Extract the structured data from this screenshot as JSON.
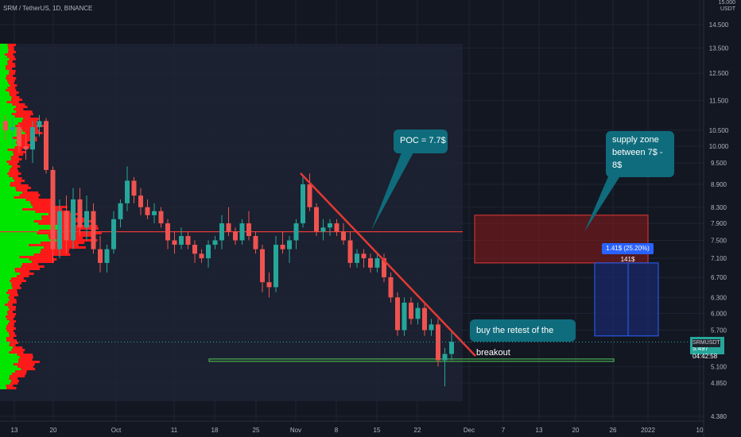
{
  "header": {
    "symbol": "SRM / TetherUS, 1D, BINANCE"
  },
  "price_axis": {
    "currency": "USDT",
    "prev_tick": "15.000"
  },
  "price_tag": {
    "symbol": "SRMUSDT",
    "price": "5.497",
    "countdown": "04:42:58"
  },
  "annotations": {
    "poc": "POC = 7.7$",
    "supply_line1": "supply zone",
    "supply_line2": "between 7$ - 8$",
    "buy": "buy the retest of the breakout"
  },
  "measure": {
    "label": "1.41$ (25.20%) 141$"
  },
  "colors": {
    "background": "#131722",
    "up": "#26a69a",
    "down": "#ef5350",
    "volume_profile_up": "#00e600",
    "volume_profile_down": "#ff1a1a",
    "poc_line": "#e53935",
    "support_line": "#4caf50",
    "supply_zone": "#8b1a1a",
    "measure_box": "#1a2a6c",
    "annotation": "#0f6c7c"
  },
  "chart_data": {
    "type": "candlestick",
    "title": "SRM / TetherUS, 1D, BINANCE",
    "ylim": [
      4.2,
      15.6
    ],
    "y_scale": "log",
    "y_ticks": [
      "14.500",
      "13.500",
      "12.500",
      "11.500",
      "10.500",
      "10.000",
      "9.500",
      "8.900",
      "8.300",
      "7.900",
      "7.500",
      "7.100",
      "6.700",
      "6.300",
      "6.000",
      "5.700",
      "5.100",
      "4.850",
      "4.380"
    ],
    "x_ticks": [
      "13",
      "20",
      "Oct",
      "11",
      "18",
      "25",
      "Nov",
      "8",
      "15",
      "22",
      "Dec",
      "7",
      "13",
      "20",
      "26",
      "2022",
      "10"
    ],
    "last_price": 5.497,
    "horizontal_lines": [
      {
        "label": "POC",
        "price": 7.7
      },
      {
        "label": "support",
        "price": 5.2
      }
    ],
    "zones": [
      {
        "label": "supply zone",
        "low": 7.0,
        "high": 8.0
      }
    ],
    "measure": {
      "from": 5.6,
      "to": 7.0,
      "text": "1.41$ (25.20%) 141$"
    },
    "trendline": {
      "from": {
        "date": "Nov 1",
        "price": 9.2
      },
      "to": {
        "date": "Nov 28",
        "price": 5.4
      }
    },
    "candles": [
      [
        10.8,
        11.0,
        10.2,
        10.5
      ],
      [
        10.5,
        10.9,
        10.0,
        10.6
      ],
      [
        10.6,
        10.7,
        9.8,
        10.0
      ],
      [
        10.0,
        10.4,
        9.6,
        9.9
      ],
      [
        9.9,
        10.8,
        9.5,
        10.6
      ],
      [
        10.6,
        11.0,
        10.3,
        10.8
      ],
      [
        10.8,
        10.9,
        9.2,
        9.3
      ],
      [
        9.3,
        9.4,
        7.0,
        7.3
      ],
      [
        7.3,
        8.5,
        7.1,
        8.2
      ],
      [
        8.2,
        8.6,
        7.2,
        7.5
      ],
      [
        7.5,
        8.8,
        7.3,
        8.5
      ],
      [
        8.5,
        8.8,
        7.6,
        7.8
      ],
      [
        7.8,
        8.6,
        7.5,
        8.2
      ],
      [
        8.2,
        8.4,
        7.2,
        7.3
      ],
      [
        7.3,
        7.6,
        6.8,
        7.0
      ],
      [
        7.0,
        7.4,
        6.8,
        7.3
      ],
      [
        7.3,
        8.2,
        7.2,
        8.0
      ],
      [
        8.0,
        8.5,
        7.8,
        8.4
      ],
      [
        8.4,
        9.4,
        8.2,
        9.0
      ],
      [
        9.0,
        9.1,
        8.4,
        8.6
      ],
      [
        8.6,
        8.8,
        8.1,
        8.3
      ],
      [
        8.3,
        8.5,
        8.0,
        8.1
      ],
      [
        8.1,
        8.4,
        7.9,
        8.2
      ],
      [
        8.2,
        8.3,
        7.8,
        7.9
      ],
      [
        7.9,
        8.0,
        7.3,
        7.5
      ],
      [
        7.5,
        7.7,
        7.2,
        7.4
      ],
      [
        7.4,
        7.8,
        7.3,
        7.6
      ],
      [
        7.6,
        7.7,
        7.3,
        7.4
      ],
      [
        7.4,
        7.5,
        7.0,
        7.2
      ],
      [
        7.2,
        7.3,
        7.0,
        7.1
      ],
      [
        7.1,
        7.5,
        6.9,
        7.4
      ],
      [
        7.4,
        7.6,
        7.3,
        7.5
      ],
      [
        7.5,
        8.1,
        7.3,
        7.9
      ],
      [
        7.9,
        8.3,
        7.6,
        7.7
      ],
      [
        7.7,
        7.8,
        7.4,
        7.5
      ],
      [
        7.5,
        8.0,
        7.4,
        7.9
      ],
      [
        7.9,
        8.2,
        7.5,
        7.6
      ],
      [
        7.6,
        7.7,
        7.2,
        7.3
      ],
      [
        7.3,
        7.4,
        6.4,
        6.6
      ],
      [
        6.6,
        6.8,
        6.3,
        6.5
      ],
      [
        6.5,
        7.6,
        6.4,
        7.4
      ],
      [
        7.4,
        7.7,
        7.2,
        7.3
      ],
      [
        7.3,
        7.6,
        7.0,
        7.5
      ],
      [
        7.5,
        8.0,
        7.3,
        7.9
      ],
      [
        7.9,
        9.1,
        7.8,
        8.9
      ],
      [
        8.9,
        9.2,
        8.2,
        8.3
      ],
      [
        8.3,
        8.4,
        7.6,
        7.7
      ],
      [
        7.7,
        8.0,
        7.5,
        7.8
      ],
      [
        7.8,
        8.0,
        7.6,
        7.9
      ],
      [
        7.9,
        8.0,
        7.6,
        7.7
      ],
      [
        7.7,
        7.9,
        7.4,
        7.5
      ],
      [
        7.5,
        7.7,
        6.9,
        7.0
      ],
      [
        7.0,
        7.3,
        6.9,
        7.2
      ],
      [
        7.2,
        7.3,
        6.9,
        7.1
      ],
      [
        7.1,
        7.2,
        6.8,
        6.9
      ],
      [
        6.9,
        7.2,
        6.8,
        7.1
      ],
      [
        7.1,
        7.2,
        6.6,
        6.7
      ],
      [
        6.7,
        6.8,
        6.2,
        6.3
      ],
      [
        6.3,
        6.4,
        5.6,
        5.7
      ],
      [
        5.7,
        6.3,
        5.6,
        6.2
      ],
      [
        6.2,
        6.3,
        5.8,
        5.9
      ],
      [
        5.9,
        6.2,
        5.8,
        6.1
      ],
      [
        6.1,
        6.2,
        5.6,
        5.7
      ],
      [
        5.7,
        5.9,
        5.6,
        5.8
      ],
      [
        5.8,
        5.9,
        5.1,
        5.2
      ],
      [
        5.2,
        5.4,
        4.8,
        5.3
      ],
      [
        5.3,
        5.7,
        5.2,
        5.5
      ]
    ]
  }
}
